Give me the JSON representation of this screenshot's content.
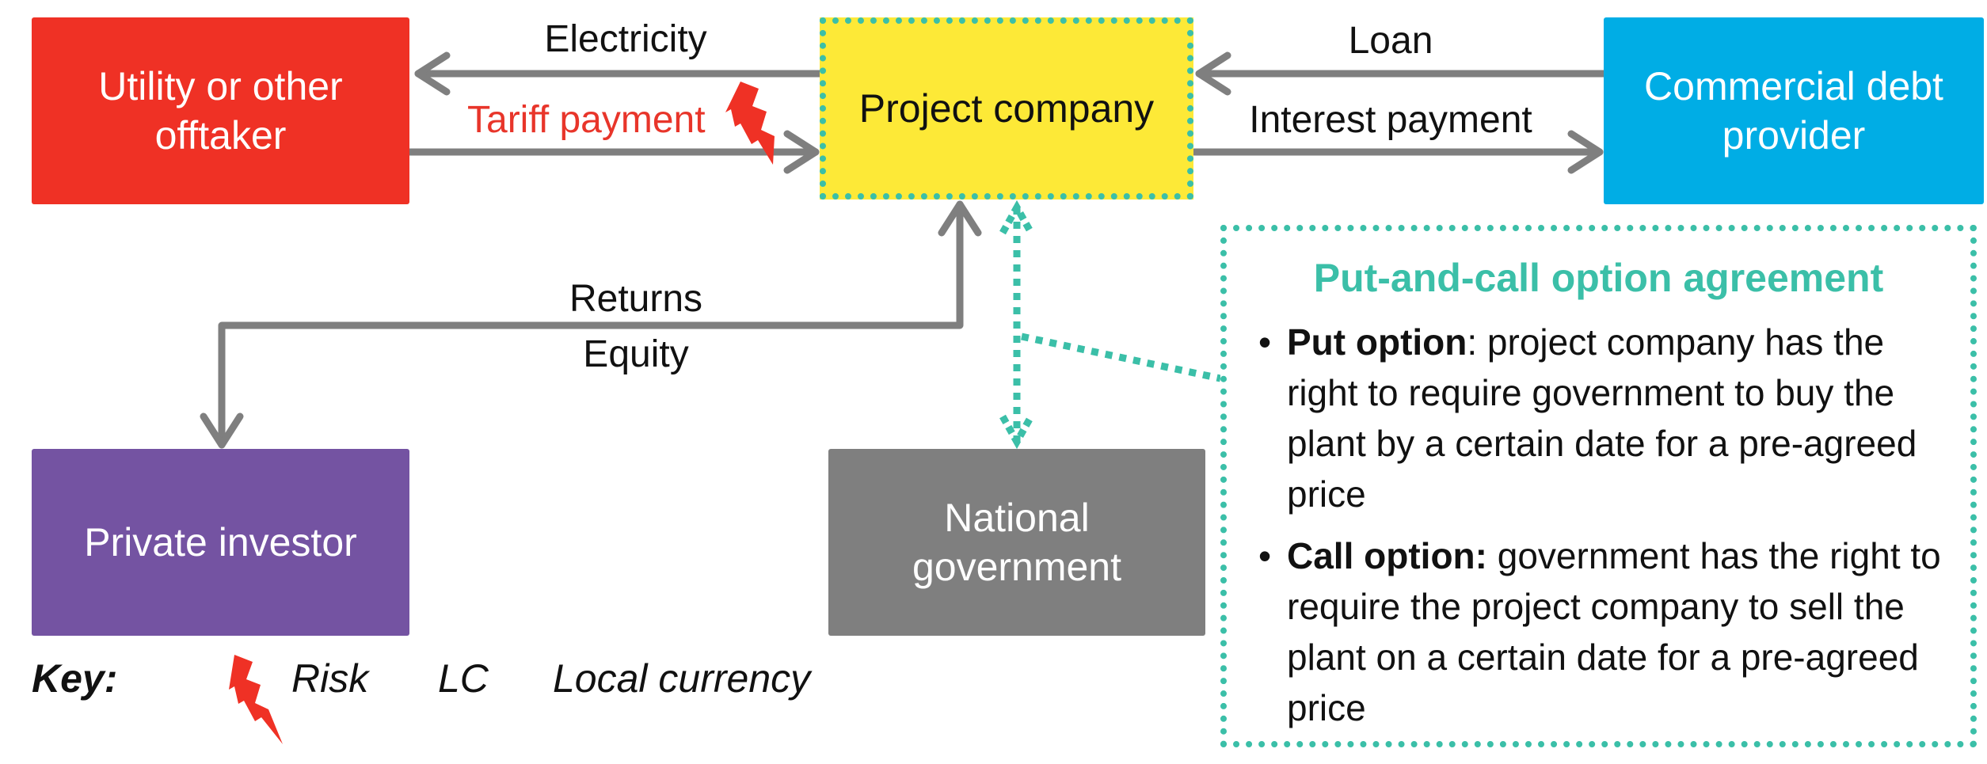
{
  "boxes": {
    "utility": {
      "label": "Utility or other\nofftaker",
      "color": "#ef3125"
    },
    "project": {
      "label": "Project company",
      "color": "#fde937"
    },
    "lender": {
      "label": "Commercial debt\nprovider",
      "color": "#00ade5"
    },
    "investor": {
      "label": "Private investor",
      "color": "#7453a2"
    },
    "government": {
      "label": "National\ngovernment",
      "color": "#7f7f7f"
    }
  },
  "flows": {
    "electricity": "Electricity",
    "tariff": "Tariff payment",
    "loan": "Loan",
    "interest": "Interest payment",
    "returns": "Returns",
    "equity": "Equity"
  },
  "agreement": {
    "title": "Put-and-call option agreement",
    "put_term": "Put option",
    "put_text": ": project company has the right to require government to buy the plant by a certain date for a pre-agreed price",
    "call_term": "Call option:",
    "call_text": " government has the right to require the project company to sell the plant on a certain date for a pre-agreed price"
  },
  "key": {
    "title": "Key:",
    "risk": "Risk",
    "lc_abbr": "LC",
    "lc_full": "Local currency"
  },
  "colors": {
    "arrow": "#7f7f7f",
    "teal": "#3bbfa8",
    "risk": "#ef3125",
    "tariff_text": "#e8352a"
  },
  "icons": {
    "risk": "lightning-bolt-icon",
    "bullet": "bullet-dot"
  }
}
